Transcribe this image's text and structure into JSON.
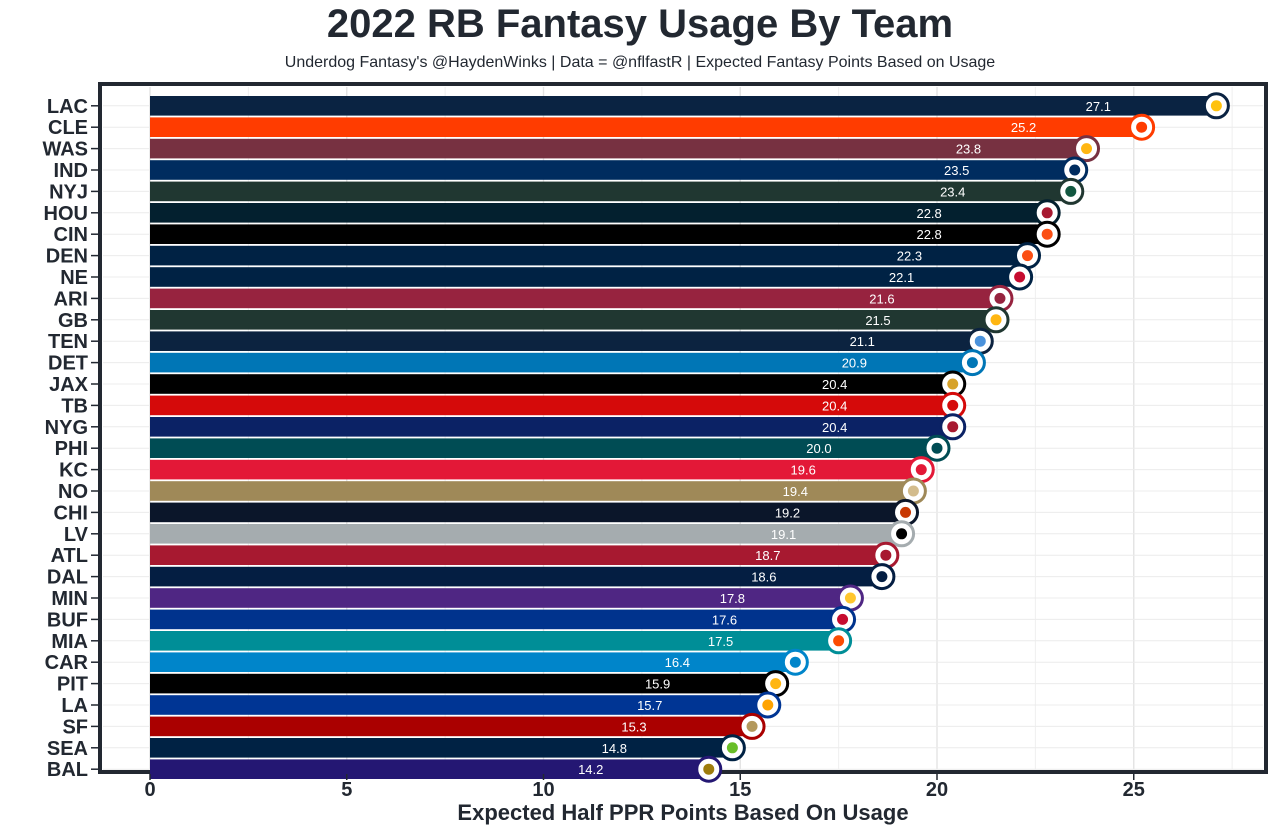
{
  "chart_data": {
    "type": "bar",
    "orientation": "horizontal",
    "title": "2022 RB Fantasy Usage By Team",
    "subtitle": "Underdog Fantasy's @HaydenWinks | Data = @nflfastR | Expected Fantasy Points Based on Usage",
    "xlabel": "Expected Half PPR Points Based On Usage",
    "ylabel": "",
    "xlim": [
      0,
      28
    ],
    "xticks": [
      0,
      5,
      10,
      15,
      20,
      25
    ],
    "grid": true,
    "categories": [
      "LAC",
      "CLE",
      "WAS",
      "IND",
      "NYJ",
      "HOU",
      "CIN",
      "DEN",
      "NE",
      "ARI",
      "GB",
      "TEN",
      "DET",
      "JAX",
      "TB",
      "NYG",
      "PHI",
      "KC",
      "NO",
      "CHI",
      "LV",
      "ATL",
      "DAL",
      "MIN",
      "BUF",
      "MIA",
      "CAR",
      "PIT",
      "LA",
      "SF",
      "SEA",
      "BAL"
    ],
    "values": [
      27.1,
      25.2,
      23.8,
      23.5,
      23.4,
      22.8,
      22.8,
      22.3,
      22.1,
      21.6,
      21.5,
      21.1,
      20.9,
      20.4,
      20.4,
      20.4,
      20.0,
      19.6,
      19.4,
      19.2,
      19.1,
      18.7,
      18.6,
      17.8,
      17.6,
      17.5,
      16.4,
      15.9,
      15.7,
      15.3,
      14.8,
      14.2
    ],
    "value_labels": [
      "27.1",
      "25.2",
      "23.8",
      "23.5",
      "23.4",
      "22.8",
      "22.8",
      "22.3",
      "22.1",
      "21.6",
      "21.5",
      "21.1",
      "20.9",
      "20.4",
      "20.4",
      "20.4",
      "20.0",
      "19.6",
      "19.4",
      "19.2",
      "19.1",
      "18.7",
      "18.6",
      "17.8",
      "17.6",
      "17.5",
      "16.4",
      "15.9",
      "15.7",
      "15.3",
      "14.8",
      "14.2"
    ],
    "colors": [
      "#0a2342",
      "#ff3c00",
      "#773141",
      "#002c5f",
      "#203731",
      "#03202f",
      "#000000",
      "#002244",
      "#002244",
      "#97233f",
      "#203731",
      "#0c2340",
      "#0076b6",
      "#000000",
      "#d50a0a",
      "#0b2265",
      "#004c54",
      "#e31837",
      "#9f8958",
      "#0b162a",
      "#a5acaf",
      "#a71930",
      "#041e42",
      "#4f2683",
      "#00338d",
      "#008e97",
      "#0085ca",
      "#000000",
      "#003594",
      "#aa0000",
      "#002244",
      "#241773"
    ],
    "logo_accents": [
      "#ffc20e",
      "#ff3c00",
      "#ffb612",
      "#002c5f",
      "#125740",
      "#a71930",
      "#fb4f14",
      "#fb4f14",
      "#c60c30",
      "#97233f",
      "#ffb612",
      "#4b92db",
      "#0076b6",
      "#d7a22a",
      "#d50a0a",
      "#a71930",
      "#004c54",
      "#e31837",
      "#d3bc8d",
      "#c83803",
      "#000000",
      "#a71930",
      "#041e42",
      "#ffc62f",
      "#c60c30",
      "#fc4c02",
      "#0085ca",
      "#ffb612",
      "#ffa300",
      "#b3995d",
      "#69be28",
      "#9e7c0c"
    ]
  }
}
